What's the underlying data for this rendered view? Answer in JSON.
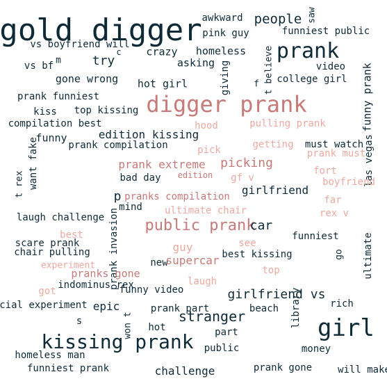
{
  "colors": {
    "dark": "#0d2a36",
    "mid": "#c87a78",
    "light": "#f0a8a0",
    "background": "#ffffff"
  },
  "words": [
    {
      "text": "gold digger",
      "tone": "dark"
    },
    {
      "text": "digger prank",
      "tone": "mid"
    },
    {
      "text": "prank",
      "tone": "dark"
    },
    {
      "text": "girl",
      "tone": "dark"
    },
    {
      "text": "kissing prank",
      "tone": "dark"
    },
    {
      "text": "public prank",
      "tone": "mid"
    },
    {
      "text": "people",
      "tone": "dark"
    },
    {
      "text": "awkward",
      "tone": "dark"
    },
    {
      "text": "pink guy",
      "tone": "dark"
    },
    {
      "text": "saw",
      "tone": "dark"
    },
    {
      "text": "funniest public",
      "tone": "dark"
    },
    {
      "text": "vs boyfriend will",
      "tone": "dark"
    },
    {
      "text": "vs bf",
      "tone": "dark"
    },
    {
      "text": "m",
      "tone": "dark"
    },
    {
      "text": "c",
      "tone": "dark"
    },
    {
      "text": "try",
      "tone": "dark"
    },
    {
      "text": "crazy",
      "tone": "dark"
    },
    {
      "text": "homeless",
      "tone": "dark"
    },
    {
      "text": "asking",
      "tone": "dark"
    },
    {
      "text": "giving",
      "tone": "dark"
    },
    {
      "text": "f",
      "tone": "dark"
    },
    {
      "text": "t believe",
      "tone": "dark"
    },
    {
      "text": "video",
      "tone": "dark"
    },
    {
      "text": "college girl",
      "tone": "dark"
    },
    {
      "text": "funny prank",
      "tone": "dark"
    },
    {
      "text": "gone wrong",
      "tone": "dark"
    },
    {
      "text": "hot girl",
      "tone": "dark"
    },
    {
      "text": "prank funniest",
      "tone": "dark"
    },
    {
      "text": "kiss",
      "tone": "dark"
    },
    {
      "text": "top kissing",
      "tone": "dark"
    },
    {
      "text": "compilation best",
      "tone": "dark"
    },
    {
      "text": "hood",
      "tone": "light"
    },
    {
      "text": "pulling prank",
      "tone": "light"
    },
    {
      "text": "edition kissing",
      "tone": "dark"
    },
    {
      "text": "funny",
      "tone": "dark"
    },
    {
      "text": "prank compilation",
      "tone": "dark"
    },
    {
      "text": "getting",
      "tone": "light"
    },
    {
      "text": "must watch",
      "tone": "dark"
    },
    {
      "text": "prank must",
      "tone": "light"
    },
    {
      "text": "las vegas",
      "tone": "dark"
    },
    {
      "text": "want fake",
      "tone": "dark"
    },
    {
      "text": "t rex",
      "tone": "dark"
    },
    {
      "text": "pick",
      "tone": "light"
    },
    {
      "text": "prank extreme",
      "tone": "mid"
    },
    {
      "text": "picking",
      "tone": "mid"
    },
    {
      "text": "bad day",
      "tone": "dark"
    },
    {
      "text": "edition",
      "tone": "mid"
    },
    {
      "text": "gf v",
      "tone": "light"
    },
    {
      "text": "fort",
      "tone": "light"
    },
    {
      "text": "boyfriend",
      "tone": "light"
    },
    {
      "text": "p",
      "tone": "dark"
    },
    {
      "text": "girlfriend",
      "tone": "dark"
    },
    {
      "text": "pranks compilation",
      "tone": "mid"
    },
    {
      "text": "far",
      "tone": "light"
    },
    {
      "text": "mind",
      "tone": "dark"
    },
    {
      "text": "ultimate chair",
      "tone": "light"
    },
    {
      "text": "rex v",
      "tone": "light"
    },
    {
      "text": "laugh challenge",
      "tone": "dark"
    },
    {
      "text": "car",
      "tone": "dark"
    },
    {
      "text": "best",
      "tone": "light"
    },
    {
      "text": "funniest",
      "tone": "dark"
    },
    {
      "text": "go",
      "tone": "dark"
    },
    {
      "text": "ultimate",
      "tone": "dark"
    },
    {
      "text": "scare prank",
      "tone": "dark"
    },
    {
      "text": "prank invasion",
      "tone": "dark"
    },
    {
      "text": "guy",
      "tone": "light"
    },
    {
      "text": "see",
      "tone": "light"
    },
    {
      "text": "chair pulling",
      "tone": "dark"
    },
    {
      "text": "best kissing",
      "tone": "dark"
    },
    {
      "text": "experiment",
      "tone": "light"
    },
    {
      "text": "new",
      "tone": "dark"
    },
    {
      "text": "supercar",
      "tone": "mid"
    },
    {
      "text": "top",
      "tone": "light"
    },
    {
      "text": "pranks gone",
      "tone": "mid"
    },
    {
      "text": "laugh",
      "tone": "light"
    },
    {
      "text": "indominus rex",
      "tone": "dark"
    },
    {
      "text": "got",
      "tone": "light"
    },
    {
      "text": "funny video",
      "tone": "dark"
    },
    {
      "text": "girlfriend vs",
      "tone": "dark"
    },
    {
      "text": "social experiment",
      "tone": "dark"
    },
    {
      "text": "epic",
      "tone": "dark"
    },
    {
      "text": "prank part",
      "tone": "dark"
    },
    {
      "text": "beach",
      "tone": "dark"
    },
    {
      "text": "library",
      "tone": "dark"
    },
    {
      "text": "rich",
      "tone": "dark"
    },
    {
      "text": "stranger",
      "tone": "dark"
    },
    {
      "text": "s",
      "tone": "dark"
    },
    {
      "text": "won t",
      "tone": "dark"
    },
    {
      "text": "hot",
      "tone": "dark"
    },
    {
      "text": "part",
      "tone": "dark"
    },
    {
      "text": "public",
      "tone": "dark"
    },
    {
      "text": "money",
      "tone": "dark"
    },
    {
      "text": "homeless man",
      "tone": "dark"
    },
    {
      "text": "funniest prank",
      "tone": "dark"
    },
    {
      "text": "challenge",
      "tone": "dark"
    },
    {
      "text": "prank gone",
      "tone": "dark"
    },
    {
      "text": "will make",
      "tone": "dark"
    },
    {
      "text": "man",
      "tone": "dark"
    }
  ]
}
